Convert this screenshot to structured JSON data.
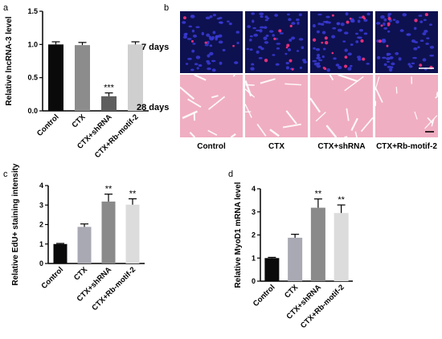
{
  "chart_data": [
    {
      "panel": "a",
      "type": "bar",
      "categories": [
        "Control",
        "CTX",
        "CTX+shRNA",
        "CTX+Rb-motif-2"
      ],
      "values": [
        1.0,
        0.99,
        0.22,
        1.0
      ],
      "errors": [
        0.04,
        0.04,
        0.05,
        0.04
      ],
      "significance": [
        "",
        "",
        "***",
        ""
      ],
      "colors": [
        "#0a0a0a",
        "#8c8c8c",
        "#5e5e5e",
        "#cfcfcf"
      ],
      "ylabel": "Relative lncRNA-3 level",
      "ylim": [
        0,
        1.5
      ],
      "yticks": [
        "0.0",
        "0.5",
        "1.0",
        "1.5"
      ]
    },
    {
      "panel": "c",
      "type": "bar",
      "categories": [
        "Control",
        "CTX",
        "CTX+shRNA",
        "CTX+Rb-motif-2"
      ],
      "values": [
        1.0,
        1.88,
        3.18,
        3.02
      ],
      "errors": [
        0.03,
        0.15,
        0.38,
        0.3
      ],
      "significance": [
        "",
        "",
        "**",
        "**"
      ],
      "colors": [
        "#0a0a0a",
        "#a9a9b4",
        "#8a8a8a",
        "#dcdcdc"
      ],
      "ylabel": "Relative EdU+ staining intensity",
      "ylim": [
        0,
        4
      ],
      "yticks": [
        "0",
        "1",
        "2",
        "3",
        "4"
      ]
    },
    {
      "panel": "d",
      "type": "bar",
      "categories": [
        "Control",
        "CTX",
        "CTX+shRNA",
        "CTX+Rb-motif-2"
      ],
      "values": [
        1.0,
        1.88,
        3.18,
        2.95
      ],
      "errors": [
        0.03,
        0.15,
        0.38,
        0.35
      ],
      "significance": [
        "",
        "",
        "**",
        "**"
      ],
      "colors": [
        "#0a0a0a",
        "#a9a9b4",
        "#8a8a8a",
        "#dcdcdc"
      ],
      "ylabel": "Relative MyoD1 mRNA level",
      "ylim": [
        0,
        4
      ],
      "yticks": [
        "0",
        "1",
        "2",
        "3",
        "4"
      ]
    }
  ],
  "labels": {
    "a": "a",
    "b": "b",
    "c": "c",
    "d": "d"
  },
  "micrographs": {
    "rows": [
      "7 days",
      "28 days"
    ],
    "conditions": [
      "Control",
      "CTX",
      "CTX+shRNA",
      "CTX+Rb-motif-2"
    ],
    "colors": {
      "edu_background": "#0d1150",
      "nuclei": "#3b3bd8",
      "edu_positive": "#e0307a",
      "he_fiber": "#f0aec2",
      "he_border": "#ffffff"
    }
  }
}
